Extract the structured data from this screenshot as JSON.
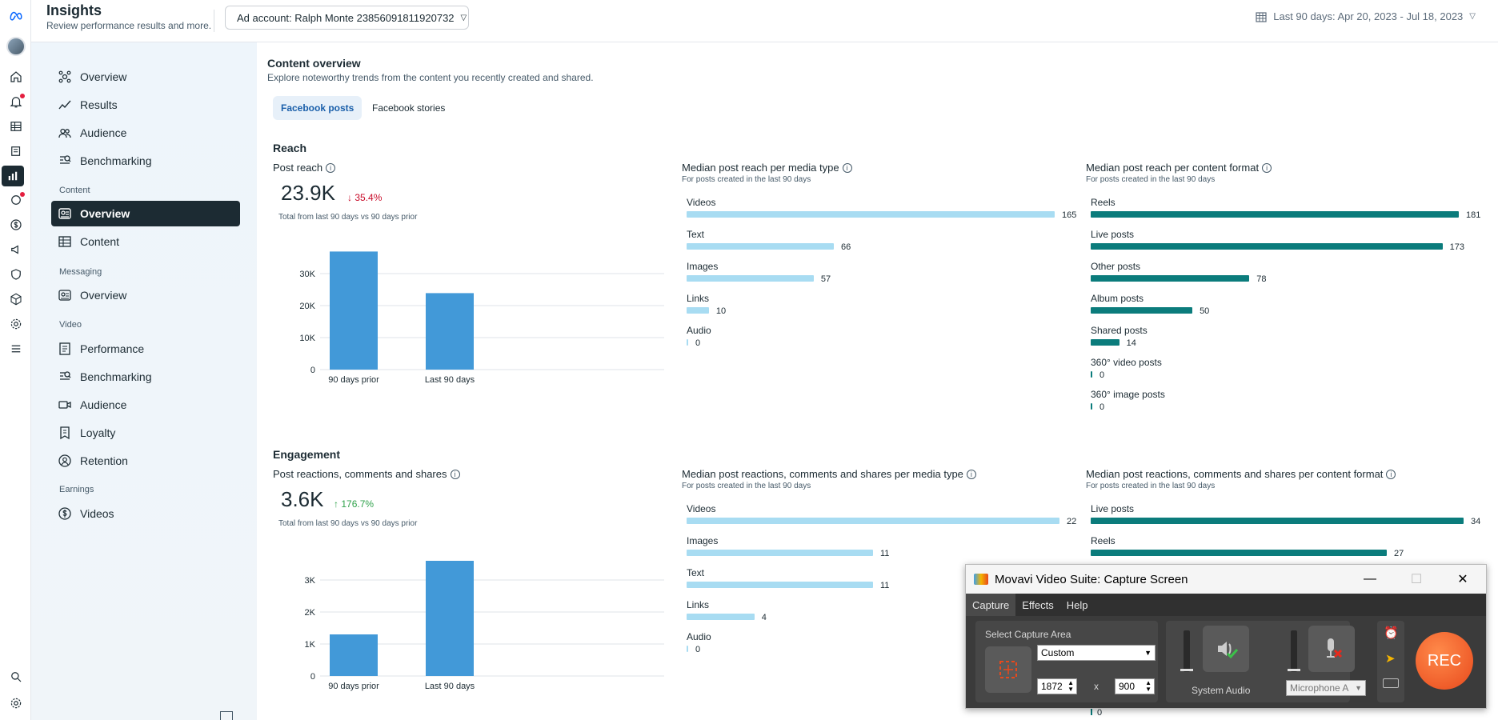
{
  "header": {
    "title": "Insights",
    "subtitle": "Review performance results and more.",
    "ad_account": "Ad account: Ralph Monte 23856091811920732",
    "date_range": "Last 90 days: Apr 20, 2023 - Jul 18, 2023"
  },
  "nav": {
    "overview": "Overview",
    "results": "Results",
    "audience": "Audience",
    "benchmarking": "Benchmarking",
    "content_section": "Content",
    "content_overview": "Overview",
    "content_content": "Content",
    "messaging_section": "Messaging",
    "messaging_overview": "Overview",
    "video_section": "Video",
    "video_performance": "Performance",
    "video_benchmarking": "Benchmarking",
    "video_audience": "Audience",
    "video_loyalty": "Loyalty",
    "video_retention": "Retention",
    "earnings_section": "Earnings",
    "earnings_videos": "Videos"
  },
  "content": {
    "title": "Content overview",
    "subtitle": "Explore noteworthy trends from the content you recently created and shared.",
    "tabs": [
      "Facebook posts",
      "Facebook stories"
    ]
  },
  "reach": {
    "section": "Reach",
    "post_reach_title": "Post reach",
    "value": "23.9K",
    "delta": "35.4%",
    "total_note": "Total from last 90 days vs 90 days prior",
    "media_title": "Median post reach per media type",
    "media_sub": "For posts created in the last 90 days",
    "format_title": "Median post reach per content format",
    "format_sub": "For posts created in the last 90 days"
  },
  "engagement": {
    "section": "Engagement",
    "title": "Post reactions, comments and shares",
    "value": "3.6K",
    "delta": "176.7%",
    "total_note": "Total from last 90 days vs 90 days prior",
    "media_title": "Median post reactions, comments and shares per media type",
    "media_sub": "For posts created in the last 90 days",
    "format_title": "Median post reactions, comments and shares per content format",
    "format_sub": "For posts created in the last 90 days"
  },
  "colors": {
    "bar_blue": "#4299d8",
    "bar_light": "#a8dcf2",
    "bar_teal": "#0b7c7c",
    "accent_dark": "#1c2b33"
  },
  "chart_data": [
    {
      "type": "bar",
      "title": "Post reach",
      "categories": [
        "90 days prior",
        "Last 90 days"
      ],
      "values": [
        36900,
        23900
      ],
      "yticks": [
        "0",
        "10K",
        "20K",
        "30K"
      ],
      "ylim": [
        0,
        40000
      ]
    },
    {
      "type": "bar",
      "orientation": "horizontal",
      "title": "Median post reach per media type",
      "categories": [
        "Videos",
        "Text",
        "Images",
        "Links",
        "Audio"
      ],
      "values": [
        165,
        66,
        57,
        10,
        0
      ]
    },
    {
      "type": "bar",
      "orientation": "horizontal",
      "title": "Median post reach per content format",
      "categories": [
        "Reels",
        "Live posts",
        "Other posts",
        "Album posts",
        "Shared posts",
        "360° video posts",
        "360° image posts"
      ],
      "values": [
        181,
        173,
        78,
        50,
        14,
        0,
        0
      ]
    },
    {
      "type": "bar",
      "title": "Post reactions, comments and shares",
      "categories": [
        "90 days prior",
        "Last 90 days"
      ],
      "values": [
        1300,
        3600
      ],
      "yticks": [
        "0",
        "1K",
        "2K",
        "3K"
      ],
      "ylim": [
        0,
        4000
      ]
    },
    {
      "type": "bar",
      "orientation": "horizontal",
      "title": "Median post reactions, comments and shares per media type",
      "categories": [
        "Videos",
        "Images",
        "Text",
        "Links",
        "Audio"
      ],
      "values": [
        22,
        11,
        11,
        4,
        0
      ]
    },
    {
      "type": "bar",
      "orientation": "horizontal",
      "title": "Median post reactions, comments and shares per content format",
      "categories": [
        "Live posts",
        "Reels"
      ],
      "values": [
        34,
        27
      ],
      "hidden_value": "0"
    }
  ],
  "movavi": {
    "title": "Movavi Video Suite: Capture Screen",
    "menu": [
      "Capture",
      "Effects",
      "Help"
    ],
    "select_area": "Select Capture Area",
    "preset": "Custom",
    "width": "1872",
    "x": "x",
    "height": "900",
    "system_audio": "System Audio",
    "microphone": "Microphone A",
    "rec": "REC"
  }
}
